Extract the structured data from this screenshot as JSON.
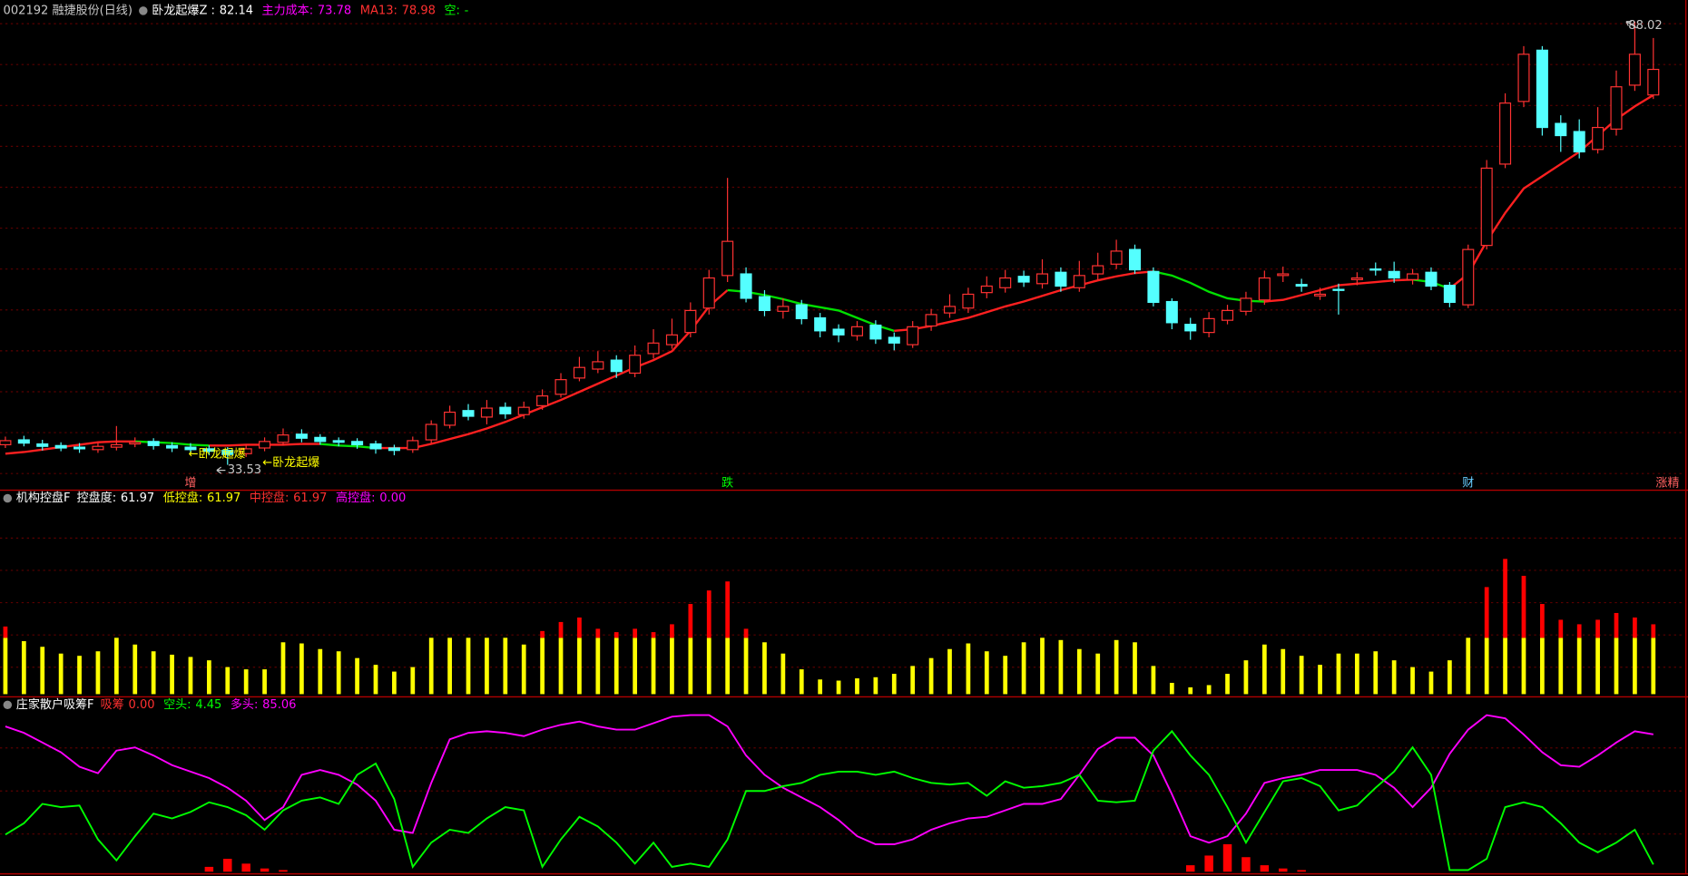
{
  "chart_data": [
    {
      "type": "candlestick",
      "title": "002192 融捷股份(日线)",
      "readouts": [
        {
          "label": "卧龙起爆Z :",
          "value": 82.14,
          "color": "#ffffff"
        },
        {
          "label": "主力成本:",
          "value": 73.78,
          "color": "#ff00ff"
        },
        {
          "label": "MA13:",
          "value": 78.98,
          "color": "#ff3030"
        },
        {
          "label": "空:",
          "value": "-",
          "color": "#00ff00"
        }
      ],
      "open": [
        36.0,
        36.6,
        36.1,
        35.9,
        35.7,
        35.4,
        35.7,
        36.1,
        36.4,
        35.9,
        35.7,
        35.5,
        35.3,
        34.9,
        35.6,
        36.3,
        37.3,
        36.9,
        36.5,
        36.4,
        36.1,
        35.6,
        35.4,
        36.6,
        38.4,
        40.2,
        39.4,
        40.6,
        39.7,
        40.8,
        42.2,
        44.2,
        45.3,
        46.4,
        44.8,
        47.2,
        48.3,
        49.8,
        52.8,
        56.8,
        57.0,
        54.2,
        52.4,
        53.2,
        51.6,
        50.2,
        49.4,
        50.7,
        49.2,
        48.3,
        50.6,
        52.2,
        52.8,
        54.7,
        55.3,
        56.7,
        55.8,
        57.2,
        55.3,
        57.0,
        58.2,
        60.0,
        57.3,
        53.6,
        50.8,
        49.8,
        51.3,
        52.4,
        53.8,
        56.8,
        55.7,
        54.3,
        55.1,
        56.3,
        57.6,
        57.3,
        56.3,
        57.2,
        55.6,
        53.2,
        60.5,
        70.5,
        78.2,
        84.5,
        75.5,
        74.5,
        72.3,
        74.8,
        80.2,
        79.0
      ],
      "high": [
        37.0,
        37.1,
        36.6,
        36.3,
        36.2,
        36.3,
        38.3,
        36.9,
        36.8,
        36.3,
        36.2,
        35.9,
        35.7,
        36.0,
        36.9,
        38.0,
        37.9,
        37.3,
        36.9,
        36.8,
        36.5,
        36.0,
        37.0,
        39.0,
        40.8,
        41.0,
        41.5,
        41.2,
        41.3,
        42.8,
        44.8,
        46.8,
        47.5,
        47.0,
        48.2,
        50.2,
        51.5,
        53.5,
        57.5,
        68.8,
        57.8,
        55.0,
        54.0,
        53.8,
        52.2,
        50.8,
        51.2,
        51.3,
        49.8,
        51.2,
        52.7,
        54.5,
        55.3,
        56.7,
        57.5,
        57.4,
        58.8,
        57.8,
        58.6,
        59.6,
        61.2,
        60.6,
        57.8,
        54.0,
        51.6,
        52.3,
        53.2,
        54.8,
        57.4,
        57.9,
        56.4,
        55.3,
        55.8,
        57.2,
        58.4,
        58.5,
        57.6,
        57.8,
        56.0,
        60.6,
        71.0,
        79.2,
        85.0,
        85.0,
        76.5,
        76.0,
        77.5,
        82.0,
        88.02,
        86.0
      ],
      "low": [
        35.6,
        35.8,
        35.3,
        35.2,
        35.0,
        35.0,
        35.3,
        35.7,
        35.4,
        35.1,
        35.0,
        34.7,
        33.53,
        34.5,
        35.2,
        35.9,
        36.3,
        36.0,
        35.8,
        35.5,
        34.9,
        34.7,
        35.0,
        36.2,
        38.0,
        39.0,
        38.5,
        39.2,
        39.2,
        40.3,
        41.8,
        43.8,
        44.8,
        44.2,
        44.3,
        46.6,
        47.8,
        49.2,
        52.0,
        56.0,
        53.5,
        51.8,
        51.5,
        50.8,
        49.2,
        48.6,
        48.8,
        48.4,
        47.6,
        47.9,
        50.0,
        51.6,
        52.2,
        54.0,
        54.7,
        55.4,
        55.2,
        54.8,
        54.8,
        56.3,
        57.6,
        57.0,
        53.0,
        50.2,
        48.9,
        49.2,
        50.8,
        51.9,
        53.2,
        56.0,
        54.8,
        53.8,
        52.0,
        55.6,
        56.8,
        55.9,
        55.7,
        55.0,
        52.9,
        52.8,
        60.0,
        70.0,
        77.5,
        74.0,
        72.0,
        71.2,
        71.8,
        74.0,
        79.5,
        78.5
      ],
      "close": [
        36.5,
        36.2,
        35.8,
        35.6,
        35.5,
        35.8,
        36.0,
        36.3,
        35.9,
        35.6,
        35.4,
        35.2,
        34.8,
        35.5,
        36.4,
        37.2,
        36.8,
        36.4,
        36.3,
        36.0,
        35.5,
        35.3,
        36.5,
        38.5,
        40.0,
        39.5,
        40.5,
        39.8,
        40.6,
        42.0,
        44.0,
        45.5,
        46.2,
        45.0,
        47.0,
        48.5,
        49.5,
        52.5,
        56.5,
        61.0,
        54.0,
        52.5,
        53.0,
        51.5,
        50.0,
        49.5,
        50.5,
        49.0,
        48.5,
        50.5,
        52.0,
        53.0,
        54.5,
        55.5,
        56.5,
        56.0,
        57.0,
        55.5,
        56.8,
        58.0,
        59.8,
        57.5,
        53.5,
        51.0,
        50.0,
        51.5,
        52.5,
        54.0,
        56.5,
        57.0,
        55.5,
        54.5,
        55.0,
        56.5,
        57.5,
        56.5,
        57.0,
        55.5,
        53.5,
        60.0,
        70.0,
        78.0,
        84.0,
        75.0,
        74.0,
        72.0,
        75.0,
        80.0,
        84.0,
        82.14
      ],
      "ma": [
        34.9,
        35.1,
        35.4,
        35.7,
        36.0,
        36.3,
        36.4,
        36.4,
        36.3,
        36.2,
        36.0,
        35.9,
        35.9,
        36.0,
        36.0,
        36.0,
        36.1,
        36.1,
        35.9,
        35.8,
        35.6,
        35.6,
        35.6,
        36.1,
        36.7,
        37.3,
        38.0,
        38.8,
        39.7,
        40.6,
        41.5,
        42.5,
        43.5,
        44.5,
        45.5,
        46.4,
        47.5,
        50.0,
        53.0,
        55.0,
        54.8,
        54.4,
        53.9,
        53.3,
        52.9,
        52.5,
        51.6,
        50.7,
        50.0,
        50.2,
        50.6,
        51.1,
        51.6,
        52.3,
        53.0,
        53.6,
        54.3,
        55.0,
        55.6,
        56.2,
        56.7,
        57.1,
        57.3,
        56.8,
        55.9,
        54.8,
        54.0,
        53.7,
        53.6,
        53.8,
        54.4,
        55.0,
        55.6,
        55.8,
        56.0,
        56.2,
        56.3,
        56.0,
        55.2,
        57.0,
        61.0,
        64.5,
        67.5,
        69.0,
        70.5,
        72.0,
        74.0,
        76.0,
        77.6,
        78.98
      ],
      "up_color": "#ff3232",
      "down_color": "#54ffff",
      "ma_up_color": "#ff2020",
      "ma_down_color": "#00e000",
      "ylim": [
        31.8,
        90.67
      ],
      "signals": [
        "←卧龙起爆",
        "←卧龙起爆"
      ],
      "markers": [
        "增",
        "跌",
        "财",
        "涨精"
      ],
      "marker_colors": [
        "#ff6060",
        "#00ff00",
        "#66ccff",
        "#ff6060"
      ]
    },
    {
      "type": "bar",
      "title": "机构控盘F",
      "readouts": [
        {
          "label": "控盘度:",
          "value": 61.97,
          "color": "#ffffff"
        },
        {
          "label": "低控盘:",
          "value": 61.97,
          "color": "#ffff00"
        },
        {
          "label": "中控盘:",
          "value": 61.97,
          "color": "#ff3030"
        },
        {
          "label": "高控盘:",
          "value": {
            "value": 0,
            "label": "0.00"
          },
          "color": "#ff00ff"
        }
      ],
      "stack": [
        {
          "color": "#ffff00",
          "values": [
            50,
            47,
            42,
            36,
            34,
            38,
            50,
            44,
            38,
            35,
            33,
            30,
            24,
            22,
            22,
            46,
            45,
            40,
            38,
            32,
            26,
            20,
            24,
            50,
            50,
            50,
            50,
            50,
            44,
            50,
            50,
            50,
            50,
            50,
            50,
            50,
            50,
            50,
            50,
            50,
            50,
            46,
            36,
            22,
            13,
            12,
            14,
            15,
            18,
            25,
            32,
            40,
            45,
            38,
            34,
            46,
            50,
            48,
            40,
            36,
            48,
            46,
            25,
            10,
            6,
            8,
            18,
            30,
            44,
            40,
            34,
            26,
            36,
            36,
            38,
            30,
            24,
            20,
            30,
            50,
            50,
            50,
            50,
            50,
            50,
            50,
            50,
            50,
            50,
            50
          ]
        },
        {
          "color": "#ff0000",
          "values": [
            10,
            0,
            0,
            0,
            0,
            0,
            0,
            0,
            0,
            0,
            0,
            0,
            0,
            0,
            0,
            0,
            0,
            0,
            0,
            0,
            0,
            0,
            0,
            0,
            0,
            0,
            0,
            0,
            0,
            6,
            14,
            18,
            8,
            5,
            8,
            5,
            12,
            30,
            42,
            50,
            8,
            0,
            0,
            0,
            0,
            0,
            0,
            0,
            0,
            0,
            0,
            0,
            0,
            0,
            0,
            0,
            0,
            0,
            0,
            0,
            0,
            0,
            0,
            0,
            0,
            0,
            0,
            0,
            0,
            0,
            0,
            0,
            0,
            0,
            0,
            0,
            0,
            0,
            0,
            0,
            45,
            70,
            55,
            30,
            16,
            12,
            16,
            22,
            18,
            11.97
          ]
        }
      ],
      "ylim": [
        0,
        170
      ]
    },
    {
      "type": "line",
      "title": "庄家散户吸筹F",
      "readouts": [
        {
          "label": "吸筹",
          "value": {
            "value": 0,
            "label": "0.00"
          },
          "color": "#ff3030"
        },
        {
          "label": "空头:",
          "value": 4.45,
          "color": "#00ff00"
        },
        {
          "label": "多头:",
          "value": 85.06,
          "color": "#ff00ff"
        }
      ],
      "series": [
        {
          "color": "#ff00ff",
          "values": [
            90,
            86,
            80,
            74,
            65,
            61,
            75,
            77,
            72,
            66,
            62,
            58,
            52,
            44,
            32,
            40,
            60,
            63,
            60,
            54,
            44,
            26,
            24,
            55,
            82,
            86,
            87,
            86,
            84,
            88,
            91,
            93,
            90,
            88,
            88,
            92,
            96,
            97,
            97,
            90,
            72,
            60,
            52,
            46,
            40,
            32,
            22,
            17,
            17,
            20,
            26,
            30,
            33,
            34,
            38,
            42,
            42,
            45,
            60,
            76,
            83,
            83,
            72,
            48,
            22,
            18,
            22,
            36,
            55,
            58,
            60,
            63,
            63,
            63,
            60,
            52,
            40,
            52,
            73,
            88,
            97,
            95,
            85,
            74,
            66,
            65,
            72,
            80,
            87,
            85.06
          ]
        },
        {
          "color": "#00ff00",
          "values": [
            23,
            30,
            42,
            40,
            41,
            20,
            7,
            22,
            36,
            33,
            37,
            43,
            40,
            35,
            26,
            38,
            44,
            46,
            42,
            60,
            67,
            45,
            3,
            18,
            26,
            24,
            33,
            40,
            38,
            3,
            20,
            34,
            28,
            18,
            5,
            18,
            3,
            5,
            3,
            20,
            50,
            50,
            53,
            55,
            60,
            62,
            62,
            60,
            62,
            58,
            55,
            54,
            55,
            47,
            56,
            52,
            53,
            55,
            60,
            44,
            43,
            44,
            75,
            87,
            72,
            60,
            40,
            18,
            37,
            56,
            58,
            53,
            38,
            41,
            52,
            62,
            77,
            60,
            1,
            1,
            8,
            40,
            43,
            40,
            30,
            18,
            12,
            18,
            26,
            4.45
          ]
        }
      ],
      "bars": {
        "color": "#ff0000",
        "values": [
          0,
          0,
          0,
          0,
          0,
          0,
          0,
          0,
          0,
          0,
          0,
          3,
          8,
          5,
          2,
          1,
          0,
          0,
          0,
          0,
          0,
          0,
          0,
          0,
          0,
          0,
          0,
          0,
          0,
          0,
          0,
          0,
          0,
          0,
          0,
          0,
          0,
          0,
          0,
          0,
          0,
          0,
          0,
          0,
          0,
          0,
          0,
          0,
          0,
          0,
          0,
          0,
          0,
          0,
          0,
          0,
          0,
          0,
          0,
          0,
          0,
          0,
          0,
          0,
          4,
          10,
          17,
          9,
          4,
          2,
          1,
          0,
          0,
          0,
          0,
          0,
          0,
          0,
          0,
          0,
          0,
          0,
          0,
          0,
          0,
          0,
          0,
          0,
          0,
          0
        ]
      },
      "ylim": [
        0,
        100
      ]
    }
  ]
}
